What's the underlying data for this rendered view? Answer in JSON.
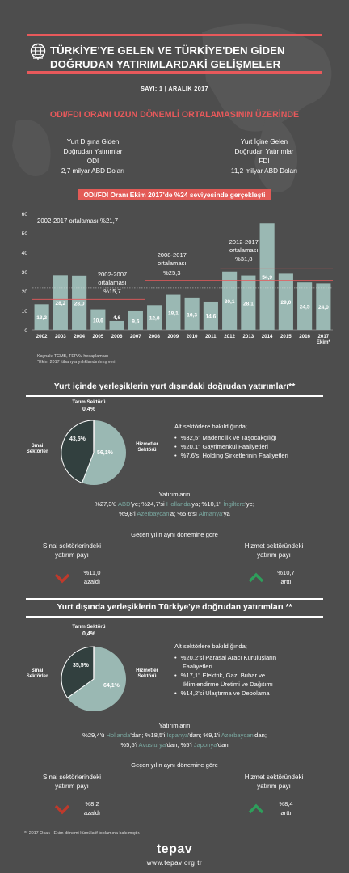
{
  "header": {
    "title_line1": "TÜRKİYE'YE GELEN VE TÜRKİYE'DEN GİDEN",
    "title_line2": "DOĞRUDAN YATIRIMLARDAKİ GELİŞMELER",
    "issue": "SAYI: 1 | ARALIK 2017",
    "icon": "globe-icon",
    "accent_color": "#e8595b"
  },
  "headline": "ODI/FDI ORANI UZUN DÖNEMLİ ORTALAMASININ ÜZERİNDE",
  "odi": {
    "l1": "Yurt Dışına Giden",
    "l2": "Doğrudan Yatırımlar",
    "l3": "ODI",
    "l4": "2,7 milyar ABD Doları"
  },
  "fdi": {
    "l1": "Yurt İçine Gelen",
    "l2": "Doğrudan Yatırımlar",
    "l3": "FDI",
    "l4": "11,2 milyar ABD Doları"
  },
  "ratio_box": "ODI/FDI Oranı Ekim 2017'de %24 seviyesinde gerçekleşti",
  "chart_data": {
    "type": "bar",
    "categories": [
      "2002",
      "2003",
      "2004",
      "2005",
      "2006",
      "2007",
      "2008",
      "2009",
      "2010",
      "2011",
      "2012",
      "2013",
      "2014",
      "2015",
      "2016",
      "2017 Ekim*"
    ],
    "values": [
      13.2,
      28.2,
      28.0,
      10.6,
      4.6,
      9.6,
      12.8,
      18.1,
      16.3,
      14.6,
      30.1,
      28.1,
      54.9,
      29.0,
      24.5,
      24.0
    ],
    "value_labels": [
      "13,2",
      "28,2",
      "28,0",
      "10,6",
      "4,6",
      "9,6",
      "12,8",
      "18,1",
      "16,3",
      "14,6",
      "30,1",
      "28,1",
      "54,9",
      "29,0",
      "24,5",
      "24,0"
    ],
    "ylim": [
      0,
      60
    ],
    "yticks": [
      0,
      10,
      20,
      30,
      40,
      50,
      60
    ],
    "bar_color": "#9ab8b3",
    "averages": [
      {
        "label": "2002-2017 ortalaması %21,7",
        "value": 21.7
      },
      {
        "label1": "2002-2007",
        "label2": "ortalaması",
        "label3": "%15,7",
        "value": 15.7
      },
      {
        "label1": "2008-2017",
        "label2": "ortalaması",
        "label3": "%25,3",
        "value": 25.3
      },
      {
        "label1": "2012-2017",
        "label2": "ortalaması",
        "label3": "%31,8",
        "value": 31.8
      }
    ],
    "source": "Kaynak: TCMB, TEPAV hesaplaması",
    "footnote": "*Ekim 2017 itibarıyla yıllıklandırılmış veri"
  },
  "section1": {
    "heading": "Yurt içinde yerleşiklerin yurt dışındaki doğrudan yatırımları**",
    "pie": {
      "slices": [
        {
          "name1": "Hizmetler",
          "name2": "Sektörü",
          "value": 56.1,
          "label": "56,1%",
          "color": "#9ab8b3"
        },
        {
          "name1": "Sınai",
          "name2": "Sektörler",
          "value": 43.5,
          "label": "43,5%",
          "color": "#32403f"
        },
        {
          "name1": "Tarım Sektörü",
          "value": 0.4,
          "label": "0,4%",
          "color": "#e0e0e0"
        }
      ]
    },
    "sub_title": "Alt sektörlere bakıldığında;",
    "bullets": [
      "%32,5'i Madencilik ve Taşocakçılığı",
      "%20,1'i Gayrimenkul Faaliyetleri",
      "%7,6'sı Holding Şirketlerinin Faaliyetleri"
    ],
    "inv_title": "Yatırımların",
    "inv1": {
      "a": "%27,3'ü ",
      "b": "ABD",
      "c": "'ye; %24,7'si ",
      "d": "Hollanda",
      "e": "'ya; %10,1'i ",
      "f": "İngiltere",
      "g": "'ye;"
    },
    "inv2": {
      "a": "%9,8'i ",
      "b": "Azerbaycan",
      "c": "'a; %5,6'sı ",
      "d": "Almanya",
      "e": "'ya"
    },
    "compare": "Geçen yılın aynı dönemine göre",
    "left_label1": "Sınai sektörlerindeki",
    "left_label2": "yatırım payı",
    "left_value": "%11,0",
    "left_dir": "azaldı",
    "right_label1": "Hizmet sektöründeki",
    "right_label2": "yatırım payı",
    "right_value": "%10,7",
    "right_dir": "arttı"
  },
  "section2": {
    "heading": "Yurt dışında yerleşiklerin Türkiye'ye doğrudan yatırımları **",
    "pie": {
      "slices": [
        {
          "name1": "Hizmetler",
          "name2": "Sektörü",
          "value": 64.1,
          "label": "64,1%",
          "color": "#9ab8b3"
        },
        {
          "name1": "Sınai",
          "name2": "Sektörler",
          "value": 35.5,
          "label": "35,5%",
          "color": "#32403f"
        },
        {
          "name1": "Tarım Sektörü",
          "value": 0.4,
          "label": "0,4%",
          "color": "#e0e0e0"
        }
      ]
    },
    "sub_title": "Alt sektörlere bakıldığında;",
    "b1a": "%20,2'si Parasal Aracı Kuruluşların",
    "b1b": "Faaliyetleri",
    "b2a": "%17,1'i Elektrik, Gaz, Buhar ve",
    "b2b": "İklimlendirme Üretimi ve Dağıtımı",
    "b3": "%14,2'si Ulaştırma ve Depolama",
    "inv_title": "Yatırımların",
    "inv1": {
      "a": "%29,4'ü ",
      "b": "Hollanda",
      "c": "'dan; %18,5'i ",
      "d": "İspanya",
      "e": "'dan; %9,1'i ",
      "f": "Azerbaycan",
      "g": "'dan;"
    },
    "inv2": {
      "a": "%5,5'i ",
      "b": "Avusturya",
      "c": "'dan; %5'i ",
      "d": "Japonya",
      "e": "'dan"
    },
    "compare": "Geçen yılın aynı dönemine göre",
    "left_label1": "Sınai sektörlerindeki",
    "left_label2": "yatırım payı",
    "left_value": "%8,2",
    "left_dir": "azaldı",
    "right_label1": "Hizmet sektöründeki",
    "right_label2": "yatırım payı",
    "right_value": "%8,4",
    "right_dir": "arttı"
  },
  "footer": {
    "note": "** 2017 Ocak - Ekim dönemi kümülatif toplamına bakılmıştır.",
    "brand": "tepav",
    "url": "www.tepav.org.tr",
    "down_color": "#c0392b",
    "up_color": "#2e9e5b"
  }
}
